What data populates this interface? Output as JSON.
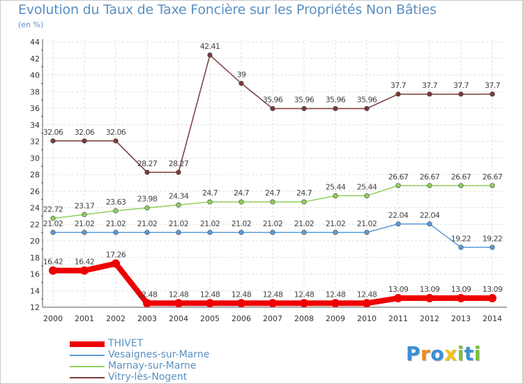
{
  "title": "Evolution du Taux de Taxe Foncière sur les Propriétés Non Bâties",
  "subtitle": "(en %)",
  "logo": {
    "letters": [
      "P",
      "r",
      "o",
      "x",
      "i",
      "t",
      "i"
    ],
    "colors": [
      "#3a8fd6",
      "#f08a1c",
      "#3a8fd6",
      "#f0c21c",
      "#7cc23f",
      "#3a8fd6",
      "#7cc23f"
    ]
  },
  "chart_data": {
    "type": "line",
    "title": "Evolution du Taux de Taxe Foncière sur les Propriétés Non Bâties",
    "ylabel": "(en %)",
    "xlabel": "",
    "ylim": [
      12,
      44
    ],
    "yticks": [
      12,
      14,
      16,
      18,
      20,
      22,
      24,
      26,
      28,
      30,
      32,
      34,
      36,
      38,
      40,
      42,
      44
    ],
    "grid": true,
    "legend_position": "bottom-left",
    "x": [
      "2000",
      "2001",
      "2002",
      "2003",
      "2004",
      "2005",
      "2006",
      "2007",
      "2008",
      "2009",
      "2010",
      "2011",
      "2012",
      "2013",
      "2014"
    ],
    "series": [
      {
        "name": "THIVET",
        "color": "#ee0000",
        "bold": true,
        "values": [
          16.42,
          16.42,
          17.26,
          12.48,
          12.48,
          12.48,
          12.48,
          12.48,
          12.48,
          12.48,
          12.48,
          13.09,
          13.09,
          13.09,
          13.09
        ],
        "labels": [
          "16.42",
          "16.42",
          "17.26",
          "12.48",
          "12.48",
          "12.48",
          "12.48",
          "12.48",
          "12.48",
          "12.48",
          "12.48",
          "13.09",
          "13.09",
          "13.09",
          "13.09"
        ]
      },
      {
        "name": "Vesaignes-sur-Marne",
        "color": "#5b9bd5",
        "bold": false,
        "values": [
          21.02,
          21.02,
          21.02,
          21.02,
          21.02,
          21.02,
          21.02,
          21.02,
          21.02,
          21.02,
          21.02,
          22.04,
          22.04,
          19.22,
          19.22
        ],
        "labels": [
          "21.02",
          "21.02",
          "21.02",
          "21.02",
          "21.02",
          "21.02",
          "21.02",
          "21.02",
          "21.02",
          "21.02",
          "21.02",
          "22.04",
          "22.04",
          "19.22",
          "19.22"
        ]
      },
      {
        "name": "Marnay-sur-Marne",
        "color": "#8fce5a",
        "bold": false,
        "values": [
          22.72,
          23.17,
          23.63,
          23.98,
          24.34,
          24.7,
          24.7,
          24.7,
          24.7,
          25.44,
          25.44,
          26.67,
          26.67,
          26.67,
          26.67
        ],
        "labels": [
          "22.72",
          "23.17",
          "23.63",
          "23.98",
          "24.34",
          "24.7",
          "24.7",
          "24.7",
          "24.7",
          "25.44",
          "25.44",
          "26.67",
          "26.67",
          "26.67",
          "26.67"
        ]
      },
      {
        "name": "Vitry-lès-Nogent",
        "color": "#7a3a3a",
        "bold": false,
        "values": [
          32.06,
          32.06,
          32.06,
          28.27,
          28.27,
          42.41,
          39,
          35.96,
          35.96,
          35.96,
          35.96,
          37.7,
          37.7,
          37.7,
          37.7
        ],
        "labels": [
          "32.06",
          "32.06",
          "32.06",
          "28.27",
          "28.27",
          "42.41",
          "39",
          "35.96",
          "35.96",
          "35.96",
          "35.96",
          "37.7",
          "37.7",
          "37.7",
          "37.7"
        ]
      }
    ]
  }
}
